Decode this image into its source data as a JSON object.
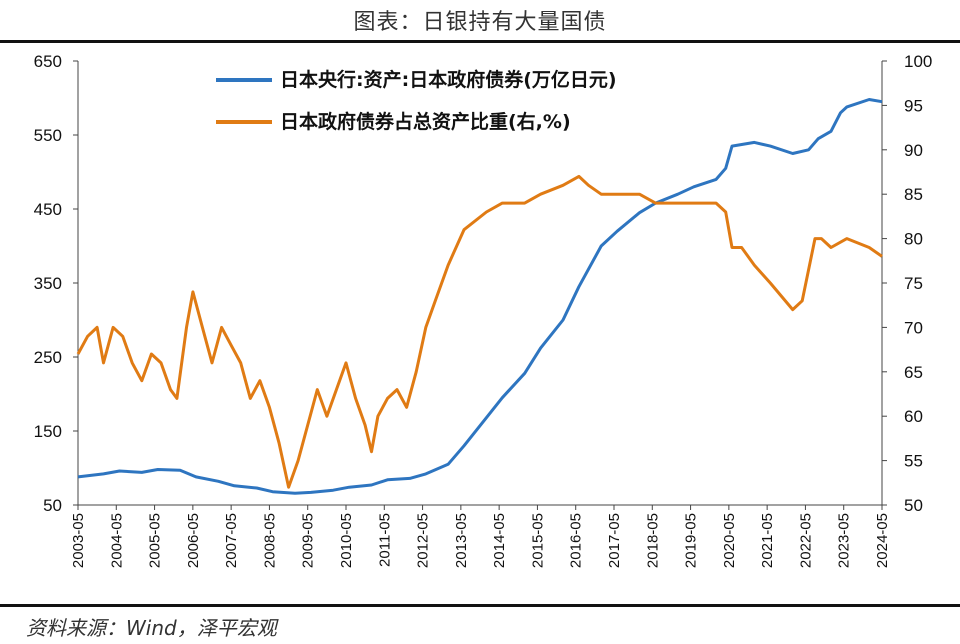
{
  "header": {
    "title": "图表：日银持有大量国债"
  },
  "footer": {
    "source": "资料来源：Wind，泽平宏观"
  },
  "chart_data": {
    "type": "line",
    "title": "图表：日银持有大量国债",
    "x_ticks": [
      "2003-05",
      "2004-05",
      "2005-05",
      "2006-05",
      "2007-05",
      "2008-05",
      "2009-05",
      "2010-05",
      "2011-05",
      "2012-05",
      "2013-05",
      "2014-05",
      "2015-05",
      "2016-05",
      "2017-05",
      "2018-05",
      "2019-05",
      "2020-05",
      "2021-05",
      "2022-05",
      "2023-05",
      "2024-05"
    ],
    "x_range": [
      "2003-05",
      "2024-05"
    ],
    "y_left": {
      "ylim": [
        50,
        650
      ],
      "ticks": [
        50,
        150,
        250,
        350,
        450,
        550,
        650
      ]
    },
    "y_right": {
      "ylim": [
        50,
        100
      ],
      "ticks": [
        50,
        55,
        60,
        65,
        70,
        75,
        80,
        85,
        90,
        95,
        100
      ]
    },
    "grid": false,
    "legend_position": "top-center",
    "series": [
      {
        "name": "日本央行:资产:日本政府债券(万亿日元)",
        "axis": "left",
        "color": "#2E75C0",
        "points": [
          [
            "2003-05",
            88
          ],
          [
            "2004-01",
            92
          ],
          [
            "2004-06",
            96
          ],
          [
            "2005-01",
            94
          ],
          [
            "2005-06",
            98
          ],
          [
            "2006-01",
            97
          ],
          [
            "2006-06",
            88
          ],
          [
            "2007-01",
            82
          ],
          [
            "2007-06",
            76
          ],
          [
            "2008-01",
            73
          ],
          [
            "2008-06",
            68
          ],
          [
            "2009-01",
            66
          ],
          [
            "2009-06",
            67
          ],
          [
            "2010-01",
            70
          ],
          [
            "2010-06",
            74
          ],
          [
            "2011-01",
            77
          ],
          [
            "2011-06",
            84
          ],
          [
            "2012-01",
            86
          ],
          [
            "2012-06",
            92
          ],
          [
            "2013-01",
            105
          ],
          [
            "2013-06",
            130
          ],
          [
            "2014-01",
            168
          ],
          [
            "2014-06",
            195
          ],
          [
            "2015-01",
            228
          ],
          [
            "2015-06",
            262
          ],
          [
            "2016-01",
            300
          ],
          [
            "2016-06",
            345
          ],
          [
            "2017-01",
            400
          ],
          [
            "2017-06",
            420
          ],
          [
            "2018-01",
            445
          ],
          [
            "2018-06",
            458
          ],
          [
            "2019-01",
            470
          ],
          [
            "2019-06",
            480
          ],
          [
            "2020-01",
            490
          ],
          [
            "2020-04",
            505
          ],
          [
            "2020-06",
            535
          ],
          [
            "2021-01",
            540
          ],
          [
            "2021-06",
            535
          ],
          [
            "2022-01",
            525
          ],
          [
            "2022-06",
            530
          ],
          [
            "2022-09",
            545
          ],
          [
            "2023-01",
            555
          ],
          [
            "2023-04",
            580
          ],
          [
            "2023-06",
            588
          ],
          [
            "2024-01",
            598
          ],
          [
            "2024-05",
            595
          ]
        ]
      },
      {
        "name": "日本政府债券占总资产比重(右,%)",
        "axis": "right",
        "color": "#E07B14",
        "points": [
          [
            "2003-05",
            67
          ],
          [
            "2003-08",
            69
          ],
          [
            "2003-11",
            70
          ],
          [
            "2004-01",
            66
          ],
          [
            "2004-04",
            70
          ],
          [
            "2004-07",
            69
          ],
          [
            "2004-10",
            66
          ],
          [
            "2005-01",
            64
          ],
          [
            "2005-04",
            67
          ],
          [
            "2005-07",
            66
          ],
          [
            "2005-10",
            63
          ],
          [
            "2005-12",
            62
          ],
          [
            "2006-03",
            70
          ],
          [
            "2006-05",
            74
          ],
          [
            "2006-08",
            70
          ],
          [
            "2006-11",
            66
          ],
          [
            "2007-02",
            70
          ],
          [
            "2007-05",
            68
          ],
          [
            "2007-08",
            66
          ],
          [
            "2007-11",
            62
          ],
          [
            "2008-02",
            64
          ],
          [
            "2008-05",
            61
          ],
          [
            "2008-08",
            57
          ],
          [
            "2008-11",
            52
          ],
          [
            "2009-02",
            55
          ],
          [
            "2009-05",
            59
          ],
          [
            "2009-08",
            63
          ],
          [
            "2009-11",
            60
          ],
          [
            "2010-02",
            63
          ],
          [
            "2010-05",
            66
          ],
          [
            "2010-08",
            62
          ],
          [
            "2010-11",
            59
          ],
          [
            "2011-01",
            56
          ],
          [
            "2011-03",
            60
          ],
          [
            "2011-06",
            62
          ],
          [
            "2011-09",
            63
          ],
          [
            "2011-12",
            61
          ],
          [
            "2012-03",
            65
          ],
          [
            "2012-06",
            70
          ],
          [
            "2012-09",
            73
          ],
          [
            "2013-01",
            77
          ],
          [
            "2013-06",
            81
          ],
          [
            "2014-01",
            83
          ],
          [
            "2014-06",
            84
          ],
          [
            "2015-01",
            84
          ],
          [
            "2015-06",
            85
          ],
          [
            "2016-01",
            86
          ],
          [
            "2016-06",
            87
          ],
          [
            "2016-09",
            86
          ],
          [
            "2017-01",
            85
          ],
          [
            "2017-06",
            85
          ],
          [
            "2018-01",
            85
          ],
          [
            "2018-06",
            84
          ],
          [
            "2019-01",
            84
          ],
          [
            "2019-06",
            84
          ],
          [
            "2020-01",
            84
          ],
          [
            "2020-04",
            83
          ],
          [
            "2020-06",
            79
          ],
          [
            "2020-09",
            79
          ],
          [
            "2021-01",
            77
          ],
          [
            "2021-06",
            75
          ],
          [
            "2022-01",
            72
          ],
          [
            "2022-04",
            73
          ],
          [
            "2022-08",
            80
          ],
          [
            "2022-10",
            80
          ],
          [
            "2023-01",
            79
          ],
          [
            "2023-06",
            80
          ],
          [
            "2024-01",
            79
          ],
          [
            "2024-05",
            78
          ]
        ]
      }
    ]
  }
}
